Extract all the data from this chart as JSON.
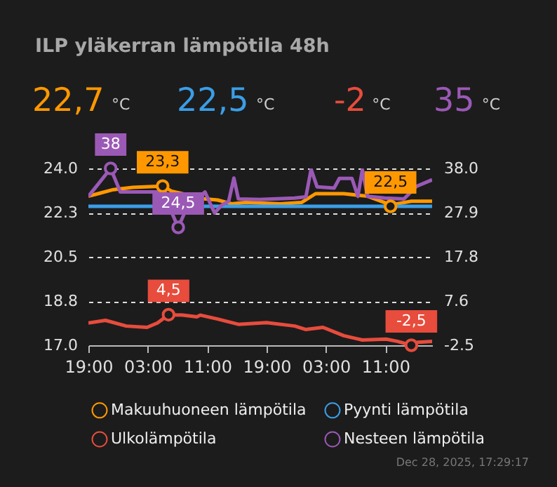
{
  "chart_data": {
    "type": "line",
    "title": "ILP yläkerran lämpötila 48h",
    "annotations": [
      "22,7 °C",
      "22,5 °C",
      "-2 °C",
      "35 °C",
      "Dec 28, 2025, 17:29:17"
    ],
    "xlim": [
      "2025-12-26T19:00",
      "2025-12-28T17:18"
    ],
    "xticks": [
      {
        "value": "2025-12-26T19:00",
        "label": "19:00"
      },
      {
        "value": "2025-12-27T03:00",
        "label": "03:00"
      },
      {
        "value": "2025-12-27T11:00",
        "label": "11:00"
      },
      {
        "value": "2025-12-27T19:00",
        "label": "19:00"
      },
      {
        "value": "2025-12-28T03:00",
        "label": "03:00"
      },
      {
        "value": "2025-12-28T11:00",
        "label": "11:00"
      }
    ],
    "ylim": [
      17.0,
      24.0
    ],
    "yticks": [
      {
        "value": 17.0,
        "label": "17.0"
      },
      {
        "value": 18.75,
        "label": "18.8"
      },
      {
        "value": 20.5,
        "label": "20.5"
      },
      {
        "value": 22.25,
        "label": "22.3"
      },
      {
        "value": 24.0,
        "label": "24.0"
      }
    ],
    "y2lim": [
      -2.5,
      38.0
    ],
    "y2ticks": [
      {
        "value": -2.5,
        "label": "-2.5"
      },
      {
        "value": 7.625,
        "label": "7.6"
      },
      {
        "value": 17.75,
        "label": "17.8"
      },
      {
        "value": 27.875,
        "label": "27.9"
      },
      {
        "value": 38.0,
        "label": "38.0"
      }
    ],
    "grid": "y",
    "legend": "bottom",
    "series": [
      {
        "name": "Makuuhuoneen lämpötila",
        "color": "#ff9800",
        "x": [
          "2025-12-26T19:00",
          "2025-12-26T20:18",
          "2025-12-26T22:12",
          "2025-12-27T01:00",
          "2025-12-27T05:00",
          "2025-12-27T06:12",
          "2025-12-27T10:30",
          "2025-12-27T12:24",
          "2025-12-27T14:18",
          "2025-12-27T16:12",
          "2025-12-27T20:54",
          "2025-12-27T23:42",
          "2025-12-28T01:36",
          "2025-12-28T05:24",
          "2025-12-28T08:36",
          "2025-12-28T10:54",
          "2025-12-28T11:42",
          "2025-12-28T12:36",
          "2025-12-28T14:30",
          "2025-12-28T17:18"
        ],
        "values": [
          22.9,
          23.0,
          23.15,
          23.25,
          23.3,
          23.1,
          22.8,
          22.75,
          22.6,
          22.65,
          22.6,
          22.65,
          23.0,
          23.0,
          22.9,
          22.65,
          22.5,
          22.6,
          22.7,
          22.7
        ],
        "value_labels": [
          null,
          null,
          null,
          null,
          "23,3",
          null,
          null,
          null,
          null,
          null,
          null,
          null,
          null,
          null,
          null,
          null,
          "22,5",
          null,
          null,
          null
        ]
      },
      {
        "name": "Pyynti lämpötila",
        "color": "#3a9ee6",
        "x": [
          "2025-12-26T19:00",
          "2025-12-27T18:00",
          "2025-12-28T17:18"
        ],
        "values": [
          22.5,
          22.5,
          22.5
        ]
      },
      {
        "name": "Ulkolämpötila",
        "color": "#e74c3c",
        "axis": "y2",
        "x": [
          "2025-12-26T19:00",
          "2025-12-26T21:18",
          "2025-12-27T00:06",
          "2025-12-27T02:54",
          "2025-12-27T04:18",
          "2025-12-27T05:48",
          "2025-12-27T07:42",
          "2025-12-27T09:36",
          "2025-12-27T10:06",
          "2025-12-27T12:24",
          "2025-12-27T15:12",
          "2025-12-27T19:00",
          "2025-12-27T22:48",
          "2025-12-28T00:18",
          "2025-12-28T02:36",
          "2025-12-28T05:24",
          "2025-12-28T07:54",
          "2025-12-28T11:06",
          "2025-12-28T12:36",
          "2025-12-28T14:30",
          "2025-12-28T15:24",
          "2025-12-28T17:18"
        ],
        "values": [
          2.6,
          3.2,
          1.9,
          1.6,
          2.6,
          4.5,
          4.4,
          4.0,
          4.4,
          3.5,
          2.3,
          2.7,
          1.9,
          1.1,
          1.6,
          -0.3,
          -1.3,
          -1.1,
          -1.6,
          -2.5,
          -1.8,
          -1.6
        ],
        "value_labels": [
          null,
          null,
          null,
          null,
          null,
          "4,5",
          null,
          null,
          null,
          null,
          null,
          null,
          null,
          null,
          null,
          null,
          null,
          null,
          null,
          "-2,5",
          null,
          null
        ]
      },
      {
        "name": "Nesteen lämpötila",
        "color": "#9b59b6",
        "axis": "y2",
        "x": [
          "2025-12-26T19:00",
          "2025-12-26T22:00",
          "2025-12-26T23:18",
          "2025-12-27T02:00",
          "2025-12-27T05:24",
          "2025-12-27T06:12",
          "2025-12-27T07:06",
          "2025-12-27T08:00",
          "2025-12-27T10:42",
          "2025-12-27T11:24",
          "2025-12-27T12:00",
          "2025-12-27T12:54",
          "2025-12-27T13:54",
          "2025-12-27T14:36",
          "2025-12-27T15:12",
          "2025-12-27T18:06",
          "2025-12-27T22:48",
          "2025-12-28T00:18",
          "2025-12-28T01:00",
          "2025-12-28T01:48",
          "2025-12-28T04:06",
          "2025-12-28T04:48",
          "2025-12-28T06:30",
          "2025-12-28T07:18",
          "2025-12-28T07:54",
          "2025-12-28T08:36",
          "2025-12-28T10:54",
          "2025-12-28T13:30",
          "2025-12-28T15:12",
          "2025-12-28T17:18"
        ],
        "values": [
          31.6,
          38,
          32.6,
          32.6,
          32.6,
          28,
          24.5,
          28,
          32.6,
          30,
          27.8,
          29.5,
          30.5,
          35.8,
          31,
          30.9,
          31.2,
          31.5,
          37.8,
          33.8,
          33.5,
          35.7,
          35.7,
          31.6,
          37.7,
          31.6,
          31.2,
          31,
          33.9,
          35.4
        ],
        "value_labels": [
          null,
          "38",
          null,
          null,
          null,
          null,
          "24,5",
          null,
          null,
          null,
          null,
          null,
          null,
          null,
          null,
          null,
          null,
          null,
          null,
          null,
          null,
          null,
          null,
          null,
          null,
          null,
          null,
          null,
          null,
          null
        ]
      }
    ]
  }
}
